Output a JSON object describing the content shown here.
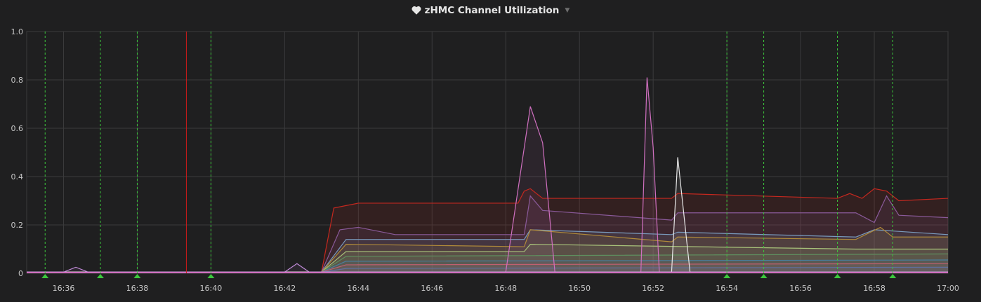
{
  "panel": {
    "title": "zHMC Channel Utilization",
    "icon": "heart-icon"
  },
  "colors": {
    "background": "#1f1f20",
    "grid": "#3b3b3c",
    "annotation_green": "#3cc83c",
    "annotation_red": "#d11a1a"
  },
  "chart_data": {
    "type": "area",
    "title": "zHMC Channel Utilization",
    "xlabel": "",
    "ylabel": "",
    "ylim": [
      0,
      1.0
    ],
    "xlim": [
      "16:35:00",
      "17:00:00"
    ],
    "grid": true,
    "legend": "none",
    "y_ticks": [
      "0",
      "0.2",
      "0.4",
      "0.6",
      "0.8",
      "1.0"
    ],
    "x_ticks": [
      "16:36",
      "16:38",
      "16:40",
      "16:42",
      "16:44",
      "16:46",
      "16:48",
      "16:50",
      "16:52",
      "16:54",
      "16:56",
      "16:58",
      "17:00"
    ],
    "annotations_green": [
      "16:35:30",
      "16:37:00",
      "16:38:00",
      "16:40:00",
      "16:54:00",
      "16:55:00",
      "16:57:00",
      "16:58:30"
    ],
    "annotations_red": [
      "16:39:20"
    ],
    "series": [
      {
        "color": "#c4281f",
        "fill": true,
        "x": [
          "16:35:00",
          "16:43:00",
          "16:43:20",
          "16:43:40",
          "16:44:00",
          "16:48:20",
          "16:48:30",
          "16:48:40",
          "16:49:00",
          "16:52:30",
          "16:52:40",
          "16:57:00",
          "16:57:20",
          "16:57:40",
          "16:58:00",
          "16:58:20",
          "16:58:40",
          "17:00:00"
        ],
        "values": [
          0.005,
          0.005,
          0.27,
          0.28,
          0.29,
          0.29,
          0.34,
          0.35,
          0.31,
          0.31,
          0.33,
          0.31,
          0.33,
          0.31,
          0.35,
          0.34,
          0.3,
          0.31
        ]
      },
      {
        "color": "#8a5a9a",
        "fill": true,
        "x": [
          "16:35:00",
          "16:43:00",
          "16:43:30",
          "16:44:00",
          "16:45:00",
          "16:48:30",
          "16:48:40",
          "16:49:00",
          "16:52:30",
          "16:52:40",
          "16:57:30",
          "16:58:00",
          "16:58:20",
          "16:58:40",
          "17:00:00"
        ],
        "values": [
          0.005,
          0.005,
          0.18,
          0.19,
          0.16,
          0.16,
          0.32,
          0.26,
          0.22,
          0.25,
          0.25,
          0.21,
          0.32,
          0.24,
          0.23
        ]
      },
      {
        "color": "#7a9bbd",
        "fill": true,
        "x": [
          "16:35:00",
          "16:43:00",
          "16:43:40",
          "16:45:00",
          "16:48:30",
          "16:48:40",
          "16:52:30",
          "16:52:40",
          "16:57:30",
          "16:58:00",
          "17:00:00"
        ],
        "values": [
          0.005,
          0.005,
          0.14,
          0.14,
          0.14,
          0.18,
          0.16,
          0.17,
          0.15,
          0.18,
          0.16
        ]
      },
      {
        "color": "#b08a3a",
        "fill": true,
        "x": [
          "16:35:00",
          "16:43:00",
          "16:43:40",
          "16:48:30",
          "16:48:40",
          "16:52:30",
          "16:52:40",
          "16:57:30",
          "16:58:10",
          "16:58:30",
          "17:00:00"
        ],
        "values": [
          0.005,
          0.005,
          0.12,
          0.11,
          0.18,
          0.13,
          0.15,
          0.14,
          0.19,
          0.15,
          0.15
        ]
      },
      {
        "color": "#a8c27a",
        "fill": true,
        "x": [
          "16:35:00",
          "16:43:00",
          "16:43:40",
          "16:48:30",
          "16:48:40",
          "16:57:30",
          "17:00:00"
        ],
        "values": [
          0.005,
          0.005,
          0.09,
          0.09,
          0.12,
          0.1,
          0.1
        ]
      },
      {
        "color": "#5f8f5f",
        "fill": true,
        "x": [
          "16:35:00",
          "16:43:00",
          "16:43:40",
          "17:00:00"
        ],
        "values": [
          0.005,
          0.005,
          0.07,
          0.08
        ]
      },
      {
        "color": "#4a7fa0",
        "fill": true,
        "x": [
          "16:35:00",
          "16:43:00",
          "16:43:40",
          "17:00:00"
        ],
        "values": [
          0.005,
          0.005,
          0.05,
          0.055
        ]
      },
      {
        "color": "#c06070",
        "fill": true,
        "x": [
          "16:35:00",
          "16:43:00",
          "16:43:40",
          "17:00:00"
        ],
        "values": [
          0.005,
          0.005,
          0.035,
          0.04
        ]
      },
      {
        "color": "#6070a0",
        "fill": true,
        "x": [
          "16:35:00",
          "16:43:00",
          "16:43:40",
          "17:00:00"
        ],
        "values": [
          0.004,
          0.004,
          0.02,
          0.025
        ]
      },
      {
        "color": "#d070c0",
        "fill": false,
        "x": [
          "16:35:00",
          "16:48:00",
          "16:48:40",
          "16:49:00",
          "16:49:20",
          "16:51:40",
          "16:51:50",
          "16:52:00",
          "16:52:10",
          "16:52:20",
          "17:00:00"
        ],
        "values": [
          0.005,
          0.005,
          0.69,
          0.54,
          0.005,
          0.005,
          0.81,
          0.52,
          0.005,
          0.005,
          0.005
        ]
      },
      {
        "color": "#e8e8e8",
        "fill": false,
        "x": [
          "16:35:00",
          "16:52:30",
          "16:52:40",
          "16:53:00",
          "17:00:00"
        ],
        "values": [
          0.005,
          0.005,
          0.48,
          0.005,
          0.005
        ]
      },
      {
        "color": "#c08ad8",
        "fill": false,
        "x": [
          "16:35:00",
          "16:36:00",
          "16:36:20",
          "16:36:40",
          "16:42:00",
          "16:42:20",
          "16:42:40",
          "17:00:00"
        ],
        "values": [
          0.005,
          0.005,
          0.025,
          0.005,
          0.005,
          0.04,
          0.005,
          0.005
        ]
      }
    ]
  }
}
